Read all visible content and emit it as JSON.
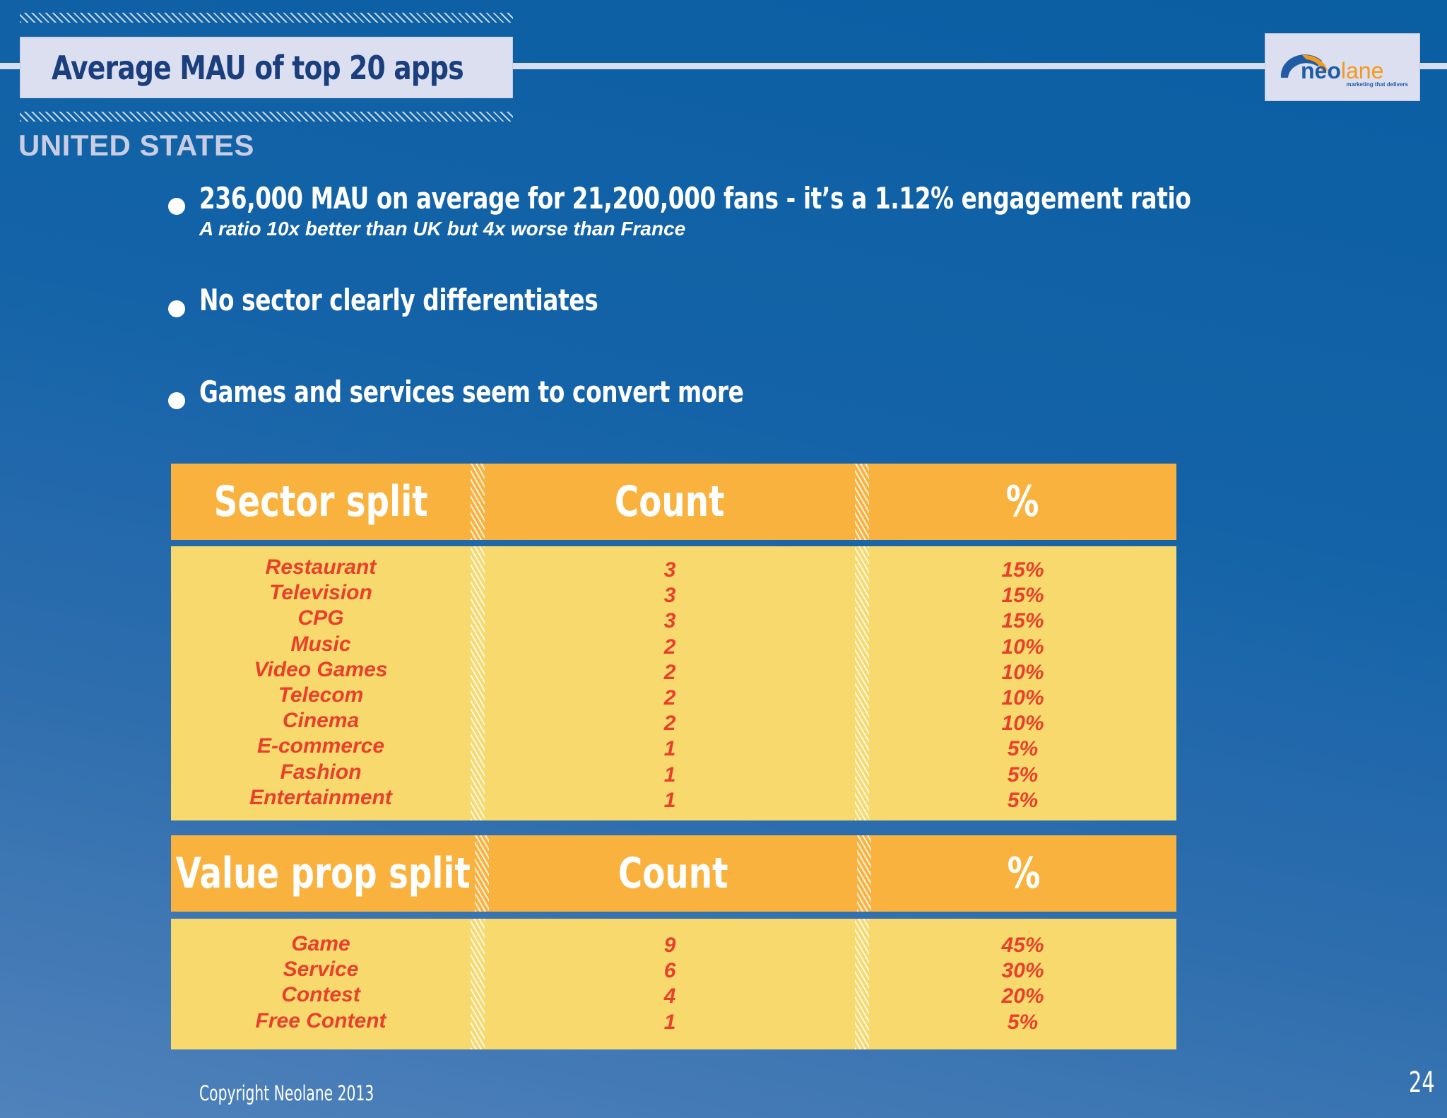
{
  "slide": {
    "title": "Average MAU of top 20 apps",
    "subtitle": "UNITED STATES",
    "copyright": "Copyright Neolane 2013",
    "page_number": "24"
  },
  "logo": {
    "name_part1": "neo",
    "name_part2": "lane",
    "tagline": "marketing that delivers",
    "colors": {
      "blue": "#1f5ca3",
      "orange": "#f39a1e"
    }
  },
  "bullets": [
    {
      "text": "236,000 MAU on average for 21,200,000 fans - it’s a 1.12% engagement ratio",
      "sub": "A ratio 10x better than UK but 4x worse than France"
    },
    {
      "text": "No sector clearly differentiates"
    },
    {
      "text": "Games and services seem to convert more"
    }
  ],
  "sector_table": {
    "headers": [
      "Sector split",
      "Count",
      "%"
    ],
    "sectors": [
      "Restaurant",
      "Television",
      "CPG",
      "Music",
      "Video Games",
      "Telecom",
      "Cinema",
      "E-commerce",
      "Fashion",
      "Entertainment"
    ],
    "counts": [
      "3",
      "3",
      "3",
      "2",
      "2",
      "2",
      "2",
      "1",
      "1",
      "1"
    ],
    "percents": [
      "15%",
      "15%",
      "15%",
      "10%",
      "10%",
      "10%",
      "10%",
      "5%",
      "5%",
      "5%"
    ]
  },
  "value_table": {
    "headers": [
      "Value prop split",
      "Count",
      "%"
    ],
    "props": [
      "Game",
      "Service",
      "Contest",
      "Free Content"
    ],
    "counts": [
      "9",
      "6",
      "4",
      "1"
    ],
    "percents": [
      "45%",
      "30%",
      "20%",
      "5%"
    ]
  },
  "colors": {
    "header_orange": "#fab23f",
    "body_yellow": "#f8d96e",
    "cell_text_red": "#e8402b",
    "title_navy": "#1a3f7c"
  }
}
